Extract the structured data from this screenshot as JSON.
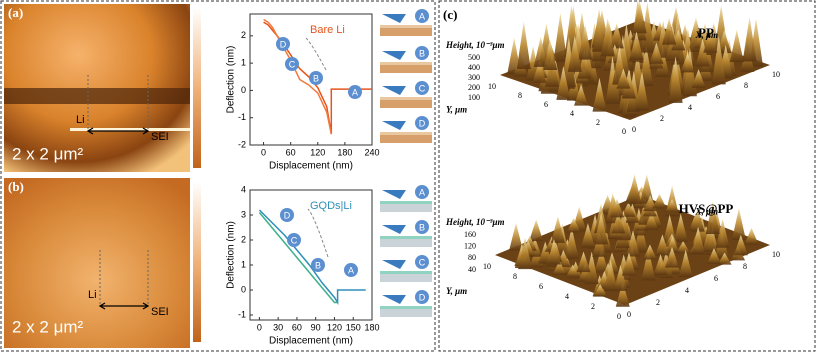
{
  "panel_labels": [
    "(a)",
    "(b)",
    "(c)"
  ],
  "afm": [
    {
      "scale": "2 x 2 μm²"
    },
    {
      "scale": "2 x 2 μm²"
    }
  ],
  "schematic": {
    "steps": [
      "A",
      "B",
      "C",
      "D"
    ]
  },
  "chart_data": [
    {
      "type": "line",
      "x_label": "Displacement (nm)",
      "y_label": "Deflection (nm)",
      "annotation": "Bare Li",
      "left_label": "Li",
      "right_label": "SEI",
      "point_labels": [
        "A",
        "B",
        "C",
        "D"
      ],
      "x": [
        0,
        10,
        20,
        40,
        60,
        80,
        100,
        120,
        140,
        150,
        150,
        180,
        210,
        240
      ],
      "series": [
        {
          "color": "#e8541c",
          "values": [
            2.5,
            2.4,
            2.2,
            1.8,
            1.3,
            0.8,
            0.5,
            0.1,
            -0.6,
            -1.6,
            0.05,
            0.05,
            0.05,
            0.05
          ]
        },
        {
          "color": "#f07a3c",
          "values": [
            2.6,
            2.5,
            2.3,
            1.7,
            1.1,
            0.4,
            0.2,
            -0.1,
            -0.8,
            -1.6,
            -1.6,
            null,
            null,
            null
          ]
        }
      ],
      "xlim": [
        -30,
        240
      ],
      "xticks": [
        0,
        60,
        120,
        180,
        240
      ],
      "ylim": [
        -2,
        2.8
      ],
      "yticks": [
        -2,
        -1,
        0,
        1,
        2
      ]
    },
    {
      "type": "line",
      "x_label": "Displacement (nm)",
      "y_label": "Deflection (nm)",
      "annotation": "GQDs|Li",
      "left_label": "Li",
      "right_label": "SEI",
      "point_labels": [
        "A",
        "B",
        "C",
        "D"
      ],
      "x": [
        0,
        20,
        40,
        60,
        80,
        100,
        120,
        125,
        125,
        150,
        170
      ],
      "series": [
        {
          "color": "#2f8fb8",
          "values": [
            3.2,
            2.7,
            2.2,
            1.6,
            1.0,
            0.3,
            -0.3,
            -0.5,
            0.0,
            0.0,
            0.0
          ]
        },
        {
          "color": "#3cb08c",
          "values": [
            3.1,
            2.5,
            1.9,
            1.3,
            0.7,
            0.1,
            -0.5,
            -0.5,
            -0.5,
            null,
            null
          ]
        }
      ],
      "xlim": [
        -15,
        180
      ],
      "xticks": [
        0,
        30,
        60,
        90,
        120,
        150,
        180
      ],
      "ylim": [
        -1.2,
        4
      ],
      "yticks": [
        -1,
        0,
        1,
        2,
        3,
        4
      ]
    }
  ],
  "surface3d": [
    {
      "title": "PP",
      "z_label": "Height, 10⁻³μm",
      "zticks": [
        100,
        200,
        300,
        400,
        500
      ],
      "x_label": "X, μm",
      "y_label": "Y, μm",
      "xticks": [
        0,
        2,
        4,
        6,
        8,
        10
      ],
      "yticks": [
        0,
        2,
        4,
        6,
        8,
        10
      ]
    },
    {
      "title": "HVS@PP",
      "z_label": "Height, 10⁻³μm",
      "zticks": [
        40,
        80,
        120,
        160
      ],
      "x_label": "X, μm",
      "y_label": "Y, μm",
      "xticks": [
        0,
        2,
        4,
        6,
        8,
        10
      ],
      "yticks": [
        0,
        2,
        4,
        6,
        8,
        10
      ]
    }
  ]
}
